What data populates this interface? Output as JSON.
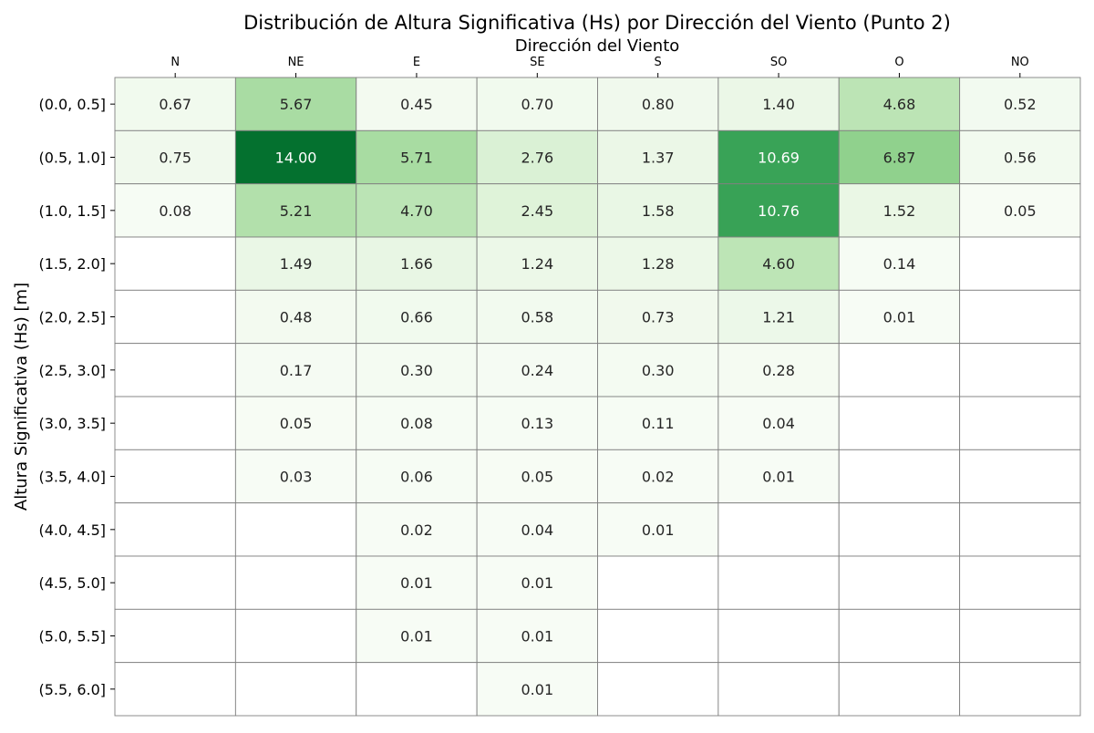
{
  "chart_data": {
    "type": "heatmap",
    "title": "Distribución de Altura Significativa (Hs) por Dirección del Viento (Punto 2)",
    "xlabel": "Dirección del Viento",
    "ylabel": "Altura Significativa (Hs) [m]",
    "x_axis_position": "top",
    "colormap": "Greens",
    "color_range": [
      0,
      14
    ],
    "grid": true,
    "value_format": "0.00",
    "columns": [
      "N",
      "NE",
      "E",
      "SE",
      "S",
      "SO",
      "O",
      "NO"
    ],
    "rows": [
      "(0.0, 0.5]",
      "(0.5, 1.0]",
      "(1.0, 1.5]",
      "(1.5, 2.0]",
      "(2.0, 2.5]",
      "(2.5, 3.0]",
      "(3.0, 3.5]",
      "(3.5, 4.0]",
      "(4.0, 4.5]",
      "(4.5, 5.0]",
      "(5.0, 5.5]",
      "(5.5, 6.0]"
    ],
    "values": [
      [
        0.67,
        5.67,
        0.45,
        0.7,
        0.8,
        1.4,
        4.68,
        0.52
      ],
      [
        0.75,
        14.0,
        5.71,
        2.76,
        1.37,
        10.69,
        6.87,
        0.56
      ],
      [
        0.08,
        5.21,
        4.7,
        2.45,
        1.58,
        10.76,
        1.52,
        0.05
      ],
      [
        null,
        1.49,
        1.66,
        1.24,
        1.28,
        4.6,
        0.14,
        null
      ],
      [
        null,
        0.48,
        0.66,
        0.58,
        0.73,
        1.21,
        0.01,
        null
      ],
      [
        null,
        0.17,
        0.3,
        0.24,
        0.3,
        0.28,
        null,
        null
      ],
      [
        null,
        0.05,
        0.08,
        0.13,
        0.11,
        0.04,
        null,
        null
      ],
      [
        null,
        0.03,
        0.06,
        0.05,
        0.02,
        0.01,
        null,
        null
      ],
      [
        null,
        null,
        0.02,
        0.04,
        0.01,
        null,
        null,
        null
      ],
      [
        null,
        null,
        0.01,
        0.01,
        null,
        null,
        null,
        null
      ],
      [
        null,
        null,
        0.01,
        0.01,
        null,
        null,
        null,
        null
      ],
      [
        null,
        null,
        null,
        0.01,
        null,
        null,
        null,
        null
      ]
    ]
  }
}
